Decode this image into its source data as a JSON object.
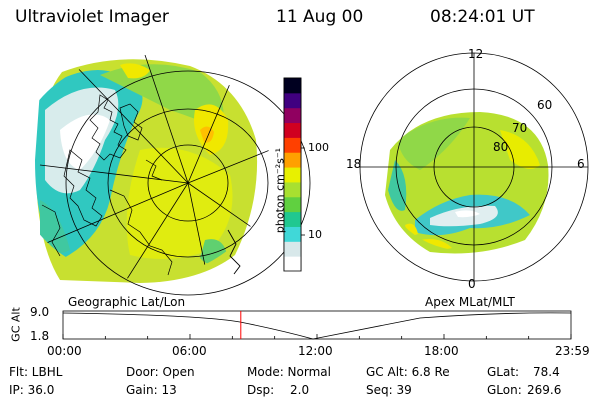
{
  "header": {
    "title": "Ultraviolet Imager",
    "date": "11 Aug 00",
    "time": "08:24:01 UT"
  },
  "left_panel": {
    "caption": "Geographic Lat/Lon"
  },
  "right_panel": {
    "caption": "Apex MLat/MLT",
    "mlt_labels": {
      "top": "12",
      "left": "18",
      "right": "6",
      "bottom": "0"
    },
    "lat_labels": [
      "60",
      "70",
      "80"
    ]
  },
  "colorbar": {
    "label": "photon cm⁻²s⁻¹",
    "ticks": [
      "100",
      "10"
    ],
    "colors": [
      "#ffffff",
      "#d8e8ea",
      "#40d8d8",
      "#20c890",
      "#60d040",
      "#a8e030",
      "#e8f000",
      "#ffa000",
      "#ff4000",
      "#d00020",
      "#900060",
      "#400080",
      "#000020"
    ]
  },
  "altitude_plot": {
    "ylabel": "GC Alt",
    "yticks": [
      "9.0",
      "1.8"
    ],
    "xticks": [
      "00:00",
      "06:00",
      "12:00",
      "18:00",
      "23:59"
    ],
    "current_time_hours": 8.4,
    "marker_color": "#ff0000"
  },
  "info": {
    "filter": "Flt: LBHL",
    "ip": "IP: 36.0",
    "door": "Door: Open",
    "gain": "Gain: 13",
    "mode": "Mode: Normal",
    "dsp_label": "Dsp:",
    "dsp_value": "2.0",
    "gc_alt": "GC Alt: 6.8 Re",
    "seq": "Seq: 39",
    "glat_label": "GLat:",
    "glat_value": "78.4",
    "glon_label": "GLon:",
    "glon_value": "269.6"
  }
}
